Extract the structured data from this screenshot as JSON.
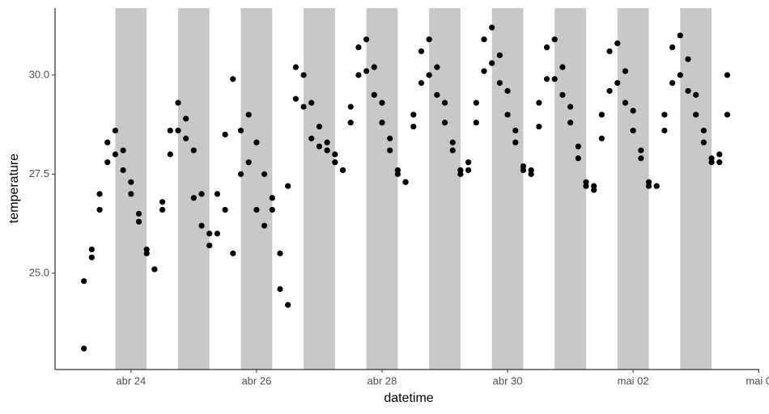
{
  "chart_data": {
    "type": "scatter",
    "x_label": "datetime",
    "y_label": "temperature",
    "xlim": [
      22.79,
      34.01
    ],
    "ylim": [
      22.57,
      31.69
    ],
    "xticks": [
      {
        "value": 24,
        "label": "abr 24"
      },
      {
        "value": 26,
        "label": "abr 26"
      },
      {
        "value": 28,
        "label": "abr 28"
      },
      {
        "value": 30,
        "label": "abr 30"
      },
      {
        "value": 32,
        "label": "mai 02"
      },
      {
        "value": 34,
        "label": "mai 0"
      }
    ],
    "yticks": [
      {
        "value": 25,
        "label": "25.0"
      },
      {
        "value": 27.5,
        "label": "27.5"
      },
      {
        "value": 30,
        "label": "30.0"
      }
    ],
    "shaded_intervals": [
      [
        23.75,
        24.25
      ],
      [
        24.75,
        25.25
      ],
      [
        25.75,
        26.25
      ],
      [
        26.75,
        27.25
      ],
      [
        27.75,
        28.25
      ],
      [
        28.75,
        29.25
      ],
      [
        29.75,
        30.25
      ],
      [
        30.75,
        31.25
      ],
      [
        31.75,
        32.25
      ],
      [
        32.75,
        33.25
      ]
    ],
    "shade_color": "#c8c8c8",
    "x": [
      23.25,
      23.375,
      23.5,
      23.625,
      23.75,
      23.875,
      24,
      24.125,
      24.25,
      24.375,
      24.5,
      24.625,
      24.75,
      24.875,
      25,
      25.125,
      25.25,
      25.375,
      25.5,
      25.625,
      25.75,
      25.875,
      26,
      26.125,
      26.25,
      26.375,
      26.5,
      26.625,
      26.75,
      26.875,
      27,
      27.125,
      27.25,
      27.375,
      27.5,
      27.625,
      27.75,
      27.875,
      28,
      28.125,
      28.25,
      28.375,
      28.5,
      28.625,
      28.75,
      28.875,
      29,
      29.125,
      29.25,
      29.375,
      29.5,
      29.625,
      29.75,
      29.875,
      30,
      30.125,
      30.25,
      30.375,
      30.5,
      30.625,
      30.75,
      30.875,
      31,
      31.125,
      31.25,
      31.375,
      31.5,
      31.625,
      31.75,
      31.875,
      32,
      32.125,
      32.25,
      32.375,
      32.5,
      32.625,
      32.75,
      32.875,
      33,
      33.125,
      33.25,
      33.375,
      33.5
    ],
    "series": [
      {
        "color": "#000000",
        "values": [
          24.8,
          25.6,
          27.0,
          28.3,
          28.6,
          28.1,
          27.3,
          26.5,
          25.6,
          25.1,
          26.8,
          28.6,
          29.3,
          28.9,
          28.1,
          27.0,
          26.0,
          27.0,
          28.5,
          29.9,
          28.6,
          29.0,
          28.3,
          27.5,
          26.9,
          25.5,
          27.2,
          30.2,
          30.0,
          29.3,
          28.7,
          28.3,
          28.0,
          27.6,
          29.2,
          30.7,
          30.9,
          30.2,
          29.3,
          28.4,
          27.6,
          27.3,
          29.0,
          30.6,
          30.9,
          30.2,
          29.3,
          28.3,
          27.5,
          27.8,
          29.3,
          30.9,
          31.2,
          30.5,
          29.6,
          28.6,
          27.7,
          27.6,
          29.3,
          30.7,
          30.9,
          30.2,
          29.2,
          28.2,
          27.3,
          27.2,
          29.0,
          30.6,
          30.8,
          30.1,
          29.1,
          28.1,
          27.3,
          27.2,
          29.0,
          30.7,
          31.0,
          30.4,
          29.5,
          28.6,
          27.9,
          28.0,
          30.0
        ]
      },
      {
        "color": "#000000",
        "values": [
          23.1,
          25.4,
          26.6,
          27.8,
          28.0,
          27.6,
          27.0,
          26.3,
          25.5,
          25.1,
          26.6,
          28.0,
          28.6,
          28.4,
          26.9,
          26.2,
          25.7,
          26.0,
          26.6,
          25.5,
          27.5,
          27.8,
          26.6,
          26.2,
          26.6,
          24.6,
          24.2,
          29.4,
          29.2,
          28.4,
          28.2,
          28.1,
          27.8,
          27.6,
          28.8,
          30.0,
          30.1,
          29.5,
          28.8,
          28.1,
          27.5,
          27.3,
          28.7,
          29.8,
          30.0,
          29.5,
          28.8,
          28.1,
          27.6,
          27.6,
          28.8,
          30.1,
          30.3,
          29.8,
          29.0,
          28.3,
          27.6,
          27.5,
          28.7,
          29.9,
          29.9,
          29.5,
          28.8,
          27.9,
          27.2,
          27.1,
          28.4,
          29.6,
          29.8,
          29.3,
          28.6,
          27.9,
          27.2,
          27.2,
          28.6,
          29.8,
          30.0,
          29.6,
          29.0,
          28.3,
          27.8,
          27.8,
          29.0
        ]
      }
    ]
  }
}
